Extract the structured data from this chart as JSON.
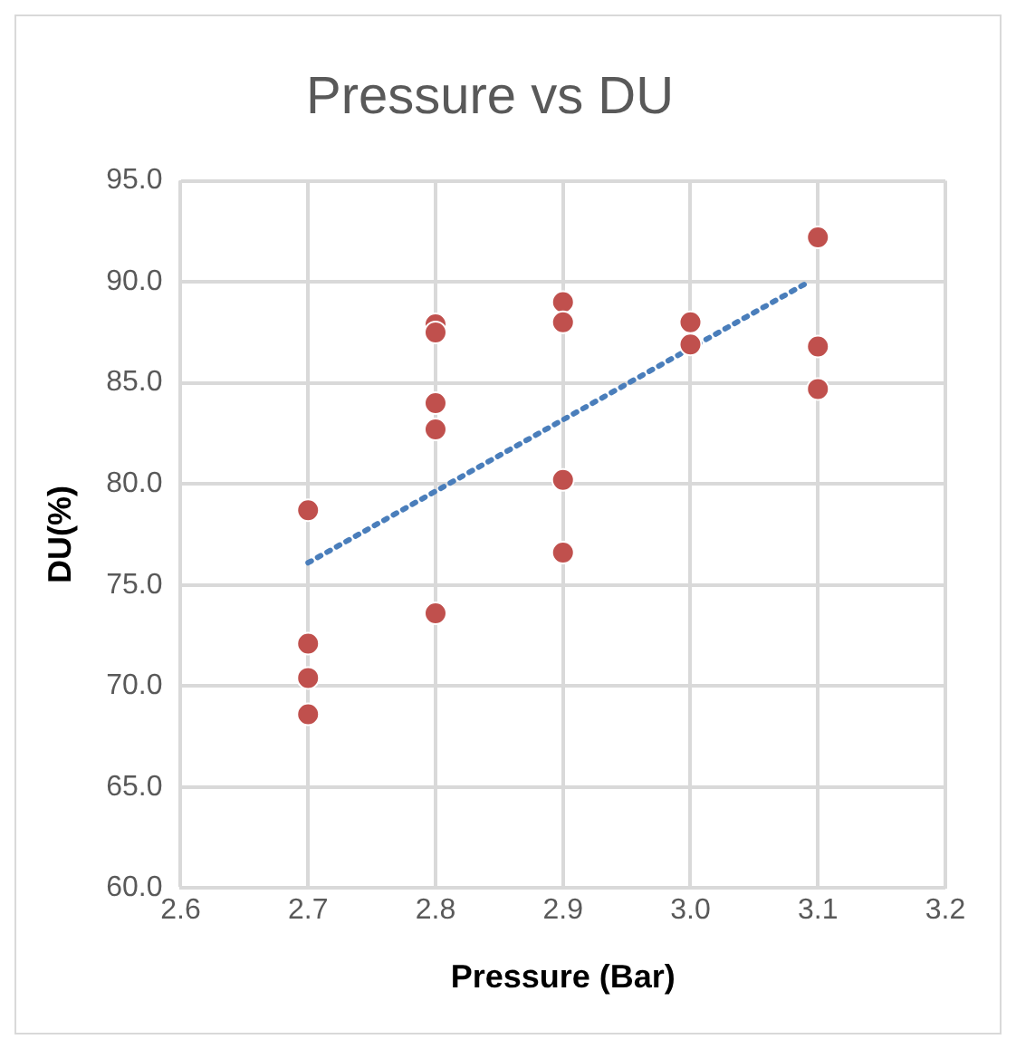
{
  "chart_data": {
    "type": "scatter",
    "title": "Pressure vs DU",
    "xlabel": "Pressure (Bar)",
    "ylabel": "DU(%)",
    "xlim": [
      2.6,
      3.2
    ],
    "xticks": [
      {
        "value": 2.6,
        "label": "2.6"
      },
      {
        "value": 2.7,
        "label": "2.7"
      },
      {
        "value": 2.8,
        "label": "2.8"
      },
      {
        "value": 2.9,
        "label": "2.9"
      },
      {
        "value": 3.0,
        "label": "3.0"
      },
      {
        "value": 3.1,
        "label": "3.1"
      },
      {
        "value": 3.2,
        "label": "3.2"
      }
    ],
    "ylim": [
      60,
      95
    ],
    "yticks": [
      {
        "value": 60,
        "label": "60.0"
      },
      {
        "value": 65,
        "label": "65.0"
      },
      {
        "value": 70,
        "label": "70.0"
      },
      {
        "value": 75,
        "label": "75.0"
      },
      {
        "value": 80,
        "label": "80.0"
      },
      {
        "value": 85,
        "label": "85.0"
      },
      {
        "value": 90,
        "label": "90.0"
      },
      {
        "value": 95,
        "label": "95.0"
      }
    ],
    "grid": true,
    "legend": false,
    "marker": "circle",
    "series": [
      {
        "color": "#c0504d",
        "x": [
          2.7,
          2.7,
          2.7,
          2.7,
          2.8,
          2.8,
          2.8,
          2.8,
          2.8,
          2.9,
          2.9,
          2.9,
          2.9,
          3.0,
          3.0,
          3.1,
          3.1,
          3.1
        ],
        "values": [
          78.7,
          72.1,
          70.4,
          68.6,
          87.9,
          87.5,
          84.0,
          82.7,
          73.6,
          89.0,
          88.0,
          80.2,
          76.6,
          88.0,
          86.9,
          92.2,
          86.8,
          84.7
        ]
      },
      {
        "type": "line",
        "color": "#4a7ebb",
        "line_style": "dotted",
        "marker": "none",
        "x": [
          2.7,
          3.09
        ],
        "values": [
          76.1,
          89.9
        ]
      }
    ]
  }
}
